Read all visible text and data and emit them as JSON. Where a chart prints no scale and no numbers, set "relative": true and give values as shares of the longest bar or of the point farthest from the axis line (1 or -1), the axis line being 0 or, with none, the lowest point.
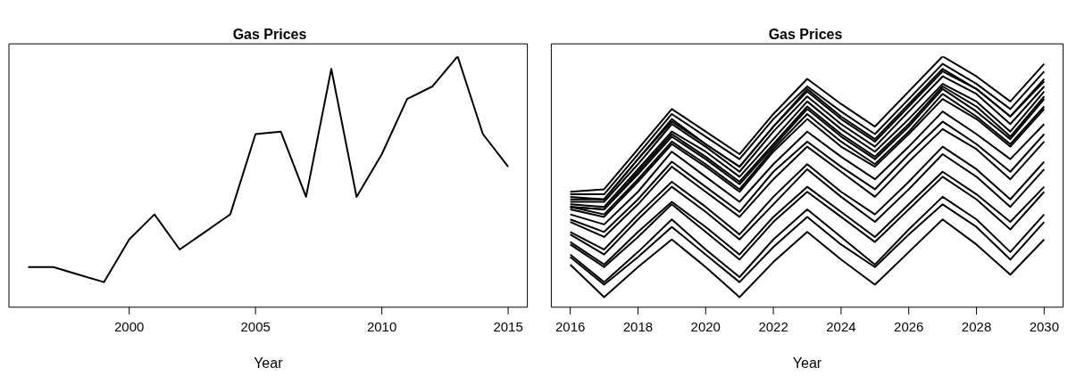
{
  "chart_data": [
    {
      "type": "line",
      "title": "Gas Prices",
      "xlabel": "Year",
      "relative": true,
      "x": [
        1996,
        1997,
        1998,
        1999,
        2000,
        2001,
        2002,
        2003,
        2004,
        2005,
        2006,
        2007,
        2008,
        2009,
        2010,
        2011,
        2012,
        2013,
        2014,
        2015
      ],
      "series": [
        {
          "color": "#000000",
          "values": [
            0.16,
            0.16,
            0.13,
            0.1,
            0.27,
            0.37,
            0.23,
            0.3,
            0.37,
            0.69,
            0.7,
            0.44,
            0.95,
            0.44,
            0.61,
            0.83,
            0.88,
            1,
            0.69,
            0.56
          ]
        }
      ],
      "xlim": [
        1995.24,
        2015.76
      ],
      "xticks": [
        2000,
        2005,
        2010,
        2015
      ]
    },
    {
      "type": "line",
      "title": "Gas Prices",
      "xlabel": "Year",
      "relative": true,
      "x": [
        2016,
        2017,
        2018,
        2019,
        2020,
        2021,
        2022,
        2023,
        2024,
        2025,
        2026,
        2027,
        2028,
        2029,
        2030
      ],
      "series": [
        {
          "color": "#000000",
          "values": [
            0.46,
            0.47,
            0.63,
            0.79,
            0.7,
            0.61,
            0.77,
            0.91,
            0.81,
            0.72,
            0.86,
            1,
            0.92,
            0.82,
            0.97
          ]
        },
        {
          "color": "#000000",
          "values": [
            0.45,
            0.45,
            0.61,
            0.77,
            0.68,
            0.59,
            0.75,
            0.88,
            0.78,
            0.69,
            0.83,
            0.97,
            0.89,
            0.79,
            0.94
          ]
        },
        {
          "color": "#000000",
          "values": [
            0.44,
            0.43,
            0.59,
            0.75,
            0.65,
            0.56,
            0.72,
            0.87,
            0.76,
            0.67,
            0.81,
            0.95,
            0.87,
            0.76,
            0.91
          ]
        },
        {
          "color": "#000000",
          "values": [
            0.43,
            0.43,
            0.59,
            0.74,
            0.65,
            0.56,
            0.72,
            0.86,
            0.75,
            0.66,
            0.8,
            0.94,
            0.87,
            0.76,
            0.9
          ]
        },
        {
          "color": "#000000",
          "values": [
            0.42,
            0.42,
            0.57,
            0.73,
            0.64,
            0.54,
            0.7,
            0.84,
            0.73,
            0.64,
            0.78,
            0.92,
            0.85,
            0.73,
            0.88
          ]
        },
        {
          "color": "#000000",
          "values": [
            0.41,
            0.4,
            0.55,
            0.7,
            0.62,
            0.52,
            0.67,
            0.82,
            0.71,
            0.62,
            0.75,
            0.89,
            0.82,
            0.7,
            0.86
          ]
        },
        {
          "color": "#000000",
          "values": [
            0.4,
            0.39,
            0.54,
            0.69,
            0.6,
            0.5,
            0.65,
            0.8,
            0.69,
            0.6,
            0.73,
            0.88,
            0.8,
            0.68,
            0.84
          ]
        },
        {
          "color": "#000000",
          "values": [
            0.4,
            0.39,
            0.53,
            0.68,
            0.59,
            0.49,
            0.64,
            0.79,
            0.68,
            0.59,
            0.72,
            0.87,
            0.78,
            0.67,
            0.83
          ]
        },
        {
          "color": "#000000",
          "values": [
            0.4,
            0.37,
            0.51,
            0.66,
            0.57,
            0.47,
            0.63,
            0.77,
            0.66,
            0.57,
            0.7,
            0.85,
            0.76,
            0.65,
            0.8
          ]
        },
        {
          "color": "#000000",
          "values": [
            0.39,
            0.36,
            0.5,
            0.65,
            0.56,
            0.46,
            0.62,
            0.75,
            0.64,
            0.56,
            0.69,
            0.83,
            0.75,
            0.64,
            0.79
          ]
        },
        {
          "color": "#000000",
          "values": [
            0.37,
            0.33,
            0.46,
            0.62,
            0.52,
            0.42,
            0.57,
            0.7,
            0.6,
            0.51,
            0.64,
            0.78,
            0.69,
            0.59,
            0.73
          ]
        },
        {
          "color": "#000000",
          "values": [
            0.35,
            0.3,
            0.43,
            0.58,
            0.48,
            0.38,
            0.54,
            0.66,
            0.56,
            0.47,
            0.61,
            0.74,
            0.65,
            0.54,
            0.69
          ]
        },
        {
          "color": "#000000",
          "values": [
            0.34,
            0.28,
            0.41,
            0.56,
            0.46,
            0.36,
            0.51,
            0.64,
            0.54,
            0.44,
            0.58,
            0.71,
            0.63,
            0.51,
            0.66
          ]
        },
        {
          "color": "#000000",
          "values": [
            0.3,
            0.23,
            0.37,
            0.5,
            0.4,
            0.29,
            0.44,
            0.57,
            0.46,
            0.37,
            0.5,
            0.64,
            0.55,
            0.43,
            0.58
          ]
        },
        {
          "color": "#000000",
          "values": [
            0.29,
            0.21,
            0.35,
            0.48,
            0.38,
            0.27,
            0.41,
            0.55,
            0.44,
            0.34,
            0.47,
            0.61,
            0.52,
            0.4,
            0.55
          ]
        },
        {
          "color": "#000000",
          "values": [
            0.26,
            0.17,
            0.3,
            0.42,
            0.32,
            0.21,
            0.36,
            0.48,
            0.38,
            0.28,
            0.41,
            0.54,
            0.45,
            0.34,
            0.48
          ]
        },
        {
          "color": "#000000",
          "values": [
            0.25,
            0.16,
            0.28,
            0.41,
            0.3,
            0.19,
            0.34,
            0.46,
            0.36,
            0.26,
            0.39,
            0.52,
            0.43,
            0.31,
            0.46
          ]
        },
        {
          "color": "#000000",
          "values": [
            0.21,
            0.1,
            0.22,
            0.35,
            0.23,
            0.12,
            0.27,
            0.39,
            0.28,
            0.17,
            0.31,
            0.44,
            0.35,
            0.22,
            0.37
          ]
        },
        {
          "color": "#000000",
          "values": [
            0.2,
            0.09,
            0.2,
            0.32,
            0.21,
            0.1,
            0.24,
            0.36,
            0.25,
            0.16,
            0.29,
            0.41,
            0.32,
            0.19,
            0.34
          ]
        },
        {
          "color": "#000000",
          "values": [
            0.17,
            0.04,
            0.16,
            0.27,
            0.16,
            0.04,
            0.18,
            0.3,
            0.19,
            0.09,
            0.22,
            0.35,
            0.25,
            0.13,
            0.27
          ]
        }
      ],
      "xlim": [
        2015.44,
        2030.56
      ],
      "xticks": [
        2016,
        2018,
        2020,
        2022,
        2024,
        2026,
        2028,
        2030
      ]
    }
  ]
}
